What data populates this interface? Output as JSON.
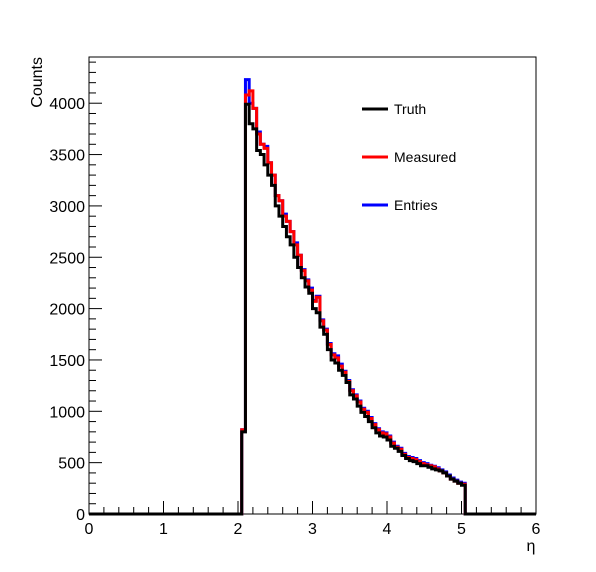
{
  "chart_data": {
    "type": "line",
    "style": "step-histogram",
    "xlabel": "η",
    "ylabel": "Counts",
    "xlim": [
      0,
      6
    ],
    "ylim": [
      0,
      4450
    ],
    "x_ticks": [
      0,
      1,
      2,
      3,
      4,
      5,
      6
    ],
    "x_tick_labels": [
      "0",
      "1",
      "2",
      "3",
      "4",
      "5",
      "6"
    ],
    "y_ticks": [
      0,
      500,
      1000,
      1500,
      2000,
      2500,
      3000,
      3500,
      4000
    ],
    "y_tick_labels": [
      "0",
      "500",
      "1000",
      "1500",
      "2000",
      "2500",
      "3000",
      "3500",
      "4000"
    ],
    "grid": false,
    "legend_position": "top-right",
    "bin_edges": [
      2.05,
      2.1,
      2.15,
      2.2,
      2.25,
      2.3,
      2.35,
      2.4,
      2.45,
      2.5,
      2.55,
      2.6,
      2.65,
      2.7,
      2.75,
      2.8,
      2.85,
      2.9,
      2.95,
      3.0,
      3.05,
      3.1,
      3.15,
      3.2,
      3.25,
      3.3,
      3.35,
      3.4,
      3.45,
      3.5,
      3.55,
      3.6,
      3.65,
      3.7,
      3.75,
      3.8,
      3.85,
      3.9,
      3.95,
      4.0,
      4.05,
      4.1,
      4.15,
      4.2,
      4.25,
      4.3,
      4.35,
      4.4,
      4.45,
      4.5,
      4.55,
      4.6,
      4.65,
      4.7,
      4.75,
      4.8,
      4.85,
      4.9,
      4.95,
      5.0,
      5.05,
      5.1
    ],
    "series": [
      {
        "name": "Entries",
        "color": "#0000ff",
        "values": [
          820,
          4230,
          4000,
          3950,
          3720,
          3600,
          3580,
          3420,
          3300,
          3100,
          3050,
          2920,
          2850,
          2750,
          2640,
          2520,
          2380,
          2280,
          2200,
          2080,
          2120,
          1890,
          1800,
          1660,
          1560,
          1540,
          1460,
          1390,
          1300,
          1210,
          1160,
          1100,
          1030,
          1000,
          940,
          880,
          830,
          800,
          790,
          760,
          700,
          660,
          640,
          590,
          560,
          550,
          540,
          520,
          500,
          490,
          475,
          465,
          450,
          430,
          410,
          380,
          350,
          330,
          310,
          300,
          0
        ]
      },
      {
        "name": "Measured",
        "color": "#ff0000",
        "values": [
          820,
          4080,
          4120,
          3950,
          3700,
          3600,
          3560,
          3420,
          3300,
          3100,
          3050,
          2900,
          2850,
          2750,
          2620,
          2520,
          2370,
          2270,
          2180,
          2070,
          2110,
          1880,
          1790,
          1650,
          1550,
          1520,
          1440,
          1380,
          1290,
          1200,
          1150,
          1090,
          1020,
          990,
          930,
          870,
          820,
          790,
          780,
          750,
          690,
          650,
          630,
          580,
          550,
          540,
          530,
          510,
          490,
          480,
          470,
          460,
          440,
          420,
          400,
          370,
          340,
          320,
          300,
          290,
          0
        ]
      },
      {
        "name": "Truth",
        "color": "#000000",
        "values": [
          800,
          3990,
          3800,
          3750,
          3540,
          3500,
          3400,
          3300,
          3200,
          3000,
          2900,
          2800,
          2700,
          2620,
          2500,
          2400,
          2300,
          2210,
          2150,
          2000,
          1960,
          1820,
          1750,
          1600,
          1500,
          1470,
          1400,
          1350,
          1280,
          1160,
          1120,
          1050,
          990,
          950,
          900,
          840,
          790,
          760,
          750,
          720,
          660,
          640,
          610,
          570,
          540,
          520,
          510,
          490,
          470,
          470,
          455,
          440,
          430,
          420,
          400,
          370,
          340,
          320,
          300,
          280,
          0
        ]
      }
    ],
    "legend_order": [
      "Truth",
      "Measured",
      "Entries"
    ]
  }
}
